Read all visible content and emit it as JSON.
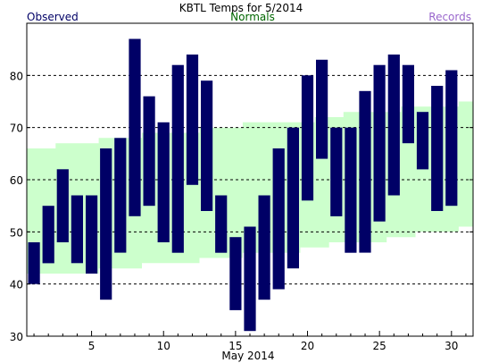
{
  "chart_data": {
    "type": "bar",
    "title": "KBTL Temps for 5/2014",
    "xlabel": "May 2014",
    "ylabel": "",
    "legend": {
      "observed_label": "Observed",
      "normals_label": "Normals",
      "records_label": "Records"
    },
    "colors": {
      "observed": "#000066",
      "normals": "#ccffcc",
      "normals_label": "#006600",
      "records_label": "#9966cc",
      "grid": "#000000"
    },
    "xlim": [
      0.5,
      31.5
    ],
    "ylim": [
      30,
      90
    ],
    "x_ticks": [
      5,
      10,
      15,
      20,
      25,
      30
    ],
    "y_ticks": [
      30,
      40,
      50,
      60,
      70,
      80
    ],
    "gridlines_y": [
      40,
      50,
      60,
      70,
      80
    ],
    "days": [
      1,
      2,
      3,
      4,
      5,
      6,
      7,
      8,
      9,
      10,
      11,
      12,
      13,
      14,
      15,
      16,
      17,
      18,
      19,
      20,
      21,
      22,
      23,
      24,
      25,
      26,
      27,
      28,
      29,
      30,
      31
    ],
    "observed_high": [
      48,
      55,
      62,
      57,
      57,
      66,
      68,
      87,
      76,
      71,
      82,
      84,
      79,
      57,
      49,
      51,
      57,
      66,
      70,
      80,
      83,
      70,
      70,
      77,
      82,
      84,
      82,
      73,
      78,
      81,
      null
    ],
    "observed_low": [
      40,
      44,
      48,
      44,
      42,
      37,
      46,
      53,
      55,
      48,
      46,
      59,
      54,
      46,
      35,
      31,
      37,
      39,
      43,
      56,
      64,
      53,
      46,
      46,
      52,
      57,
      67,
      62,
      54,
      55,
      null
    ],
    "normal_high": [
      66,
      66,
      67,
      67,
      67,
      68,
      68,
      68,
      69,
      69,
      69,
      69,
      70,
      70,
      70,
      71,
      71,
      71,
      71,
      71,
      72,
      72,
      73,
      73,
      73,
      73,
      74,
      74,
      74,
      74,
      75
    ],
    "normal_low": [
      42,
      42,
      42,
      42,
      42,
      43,
      43,
      43,
      44,
      44,
      44,
      44,
      45,
      45,
      45,
      46,
      46,
      46,
      46,
      47,
      47,
      48,
      48,
      48,
      48,
      49,
      49,
      50,
      50,
      50,
      51
    ]
  }
}
